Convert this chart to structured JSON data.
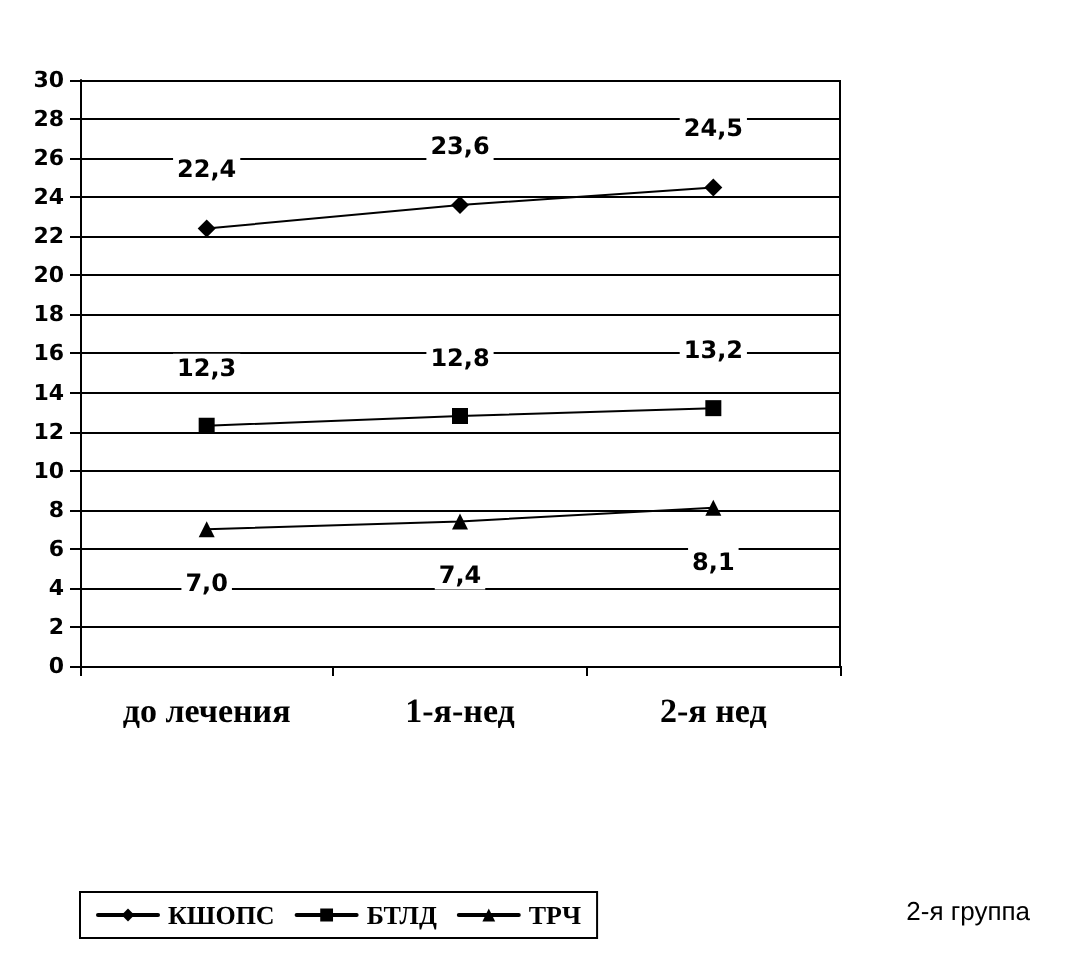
{
  "chart_data": {
    "type": "line",
    "categories": [
      "до лечения",
      "1-я-нед",
      "2-я нед"
    ],
    "series": [
      {
        "name": "КШОПС",
        "color": "#000000",
        "marker": "diamond",
        "values": [
          22.4,
          23.6,
          24.5
        ],
        "value_labels": [
          "22,4",
          "23,6",
          "24,5"
        ]
      },
      {
        "name": "БТЛД",
        "color": "#000000",
        "marker": "square",
        "values": [
          12.3,
          12.8,
          13.2
        ],
        "value_labels": [
          "12,3",
          "12,8",
          "13,2"
        ]
      },
      {
        "name": "ТРЧ",
        "color": "#000000",
        "marker": "triangle",
        "values": [
          7.0,
          7.4,
          8.1
        ],
        "value_labels": [
          "7,0",
          "7,4",
          "8,1"
        ]
      }
    ],
    "ylim": [
      0,
      30
    ],
    "yticks": [
      0,
      2,
      4,
      6,
      8,
      10,
      12,
      14,
      16,
      18,
      20,
      22,
      24,
      26,
      28,
      30
    ],
    "grid": "y",
    "legend": "bottom",
    "line_style": "solid",
    "annotations": [
      "2-я группа"
    ]
  }
}
